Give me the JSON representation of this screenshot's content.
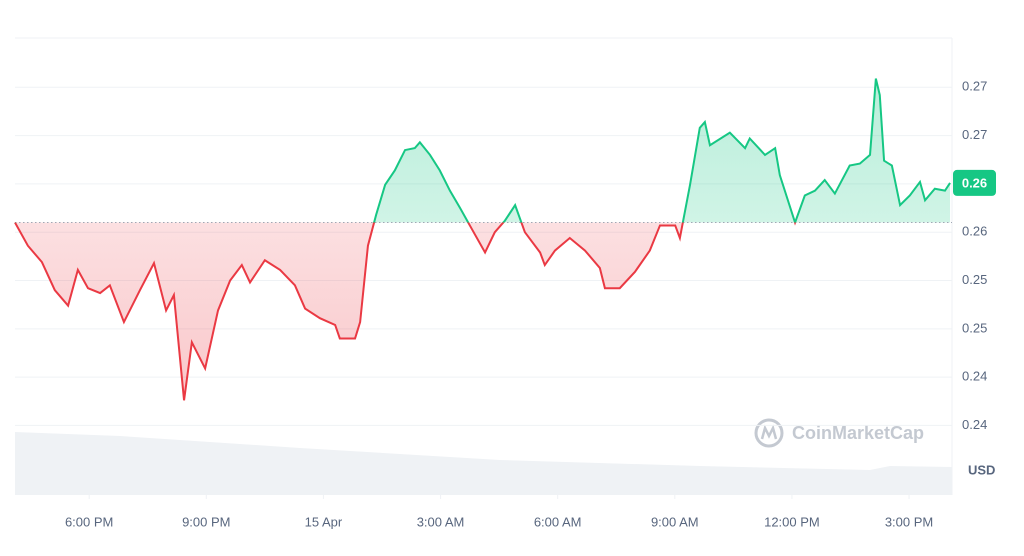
{
  "chart_data": {
    "type": "line",
    "series": [
      {
        "name": null,
        "up_color": "#16c784",
        "down_color": "#ea3943",
        "x": [
          0,
          0.33,
          0.69,
          1.02,
          1.36,
          1.61,
          1.87,
          2.18,
          2.43,
          2.79,
          3.2,
          3.56,
          3.87,
          4.07,
          4.33,
          4.53,
          4.87,
          5.2,
          5.51,
          5.81,
          6.02,
          6.4,
          6.79,
          7.17,
          7.43,
          7.81,
          8.2,
          8.32,
          8.71,
          8.84,
          9.04,
          9.25,
          9.48,
          9.73,
          9.99,
          10.24,
          10.37,
          10.63,
          10.88,
          11.14,
          11.4,
          11.65,
          12.04,
          12.29,
          12.55,
          12.81,
          13.06,
          13.45,
          13.57,
          13.83,
          14.21,
          14.6,
          14.98,
          15.11,
          15.49,
          15.88,
          16.26,
          16.52,
          16.91,
          17.03,
          17.29,
          17.54,
          17.67,
          17.8,
          18.31,
          18.7,
          18.82,
          19.21,
          19.47,
          19.59,
          19.98,
          20.23,
          20.49,
          20.74,
          21,
          21.38,
          21.64,
          21.9,
          22.05,
          22.15,
          22.26,
          22.46,
          22.67,
          22.92,
          23.18,
          23.31,
          23.56,
          23.82,
          23.95
        ],
        "values": [
          0.256,
          0.2536,
          0.2519,
          0.249,
          0.2474,
          0.2511,
          0.2492,
          0.2487,
          0.2495,
          0.2457,
          0.249,
          0.2518,
          0.2469,
          0.2485,
          0.2376,
          0.2436,
          0.2409,
          0.2469,
          0.25,
          0.2516,
          0.2498,
          0.2521,
          0.2511,
          0.2495,
          0.2471,
          0.2461,
          0.2454,
          0.244,
          0.244,
          0.2457,
          0.2536,
          0.2568,
          0.2599,
          0.2614,
          0.2635,
          0.2637,
          0.2643,
          0.263,
          0.2614,
          0.2593,
          0.2575,
          0.2557,
          0.2529,
          0.255,
          0.2562,
          0.2578,
          0.255,
          0.2529,
          0.2516,
          0.2531,
          0.2544,
          0.2531,
          0.2513,
          0.2492,
          0.2492,
          0.2509,
          0.2531,
          0.2557,
          0.2557,
          0.2544,
          0.2599,
          0.2658,
          0.2664,
          0.264,
          0.2653,
          0.2637,
          0.2647,
          0.263,
          0.2637,
          0.2609,
          0.256,
          0.2588,
          0.2593,
          0.2604,
          0.259,
          0.2619,
          0.2621,
          0.263,
          0.2709,
          0.2692,
          0.2624,
          0.2619,
          0.2578,
          0.2588,
          0.2602,
          0.2583,
          0.2595,
          0.2593,
          0.2601
        ]
      }
    ],
    "baseline": 0.256,
    "last_price": {
      "value": 0.2601,
      "label": "0.26"
    },
    "xlim": [
      0,
      24
    ],
    "xticks": [
      {
        "value": 1.9,
        "label": "6:00 PM"
      },
      {
        "value": 4.9,
        "label": "9:00 PM"
      },
      {
        "value": 7.9,
        "label": "15 Apr"
      },
      {
        "value": 10.9,
        "label": "3:00 AM"
      },
      {
        "value": 13.9,
        "label": "6:00 AM"
      },
      {
        "value": 16.9,
        "label": "9:00 AM"
      },
      {
        "value": 19.9,
        "label": "12:00 PM"
      },
      {
        "value": 22.9,
        "label": "3:00 PM"
      }
    ],
    "ylim": [
      0.2278,
      0.2751
    ],
    "yticks": [
      0.27,
      {
        "value": 0.265,
        "label": "0.27"
      },
      0.26,
      {
        "value": 0.255,
        "label": "0.26"
      },
      0.25,
      {
        "value": 0.245,
        "label": "0.25"
      },
      0.24,
      {
        "value": 0.235,
        "label": "0.24"
      }
    ],
    "y_unit": "USD",
    "watermark": "CoinMarketCap",
    "grid": true
  }
}
